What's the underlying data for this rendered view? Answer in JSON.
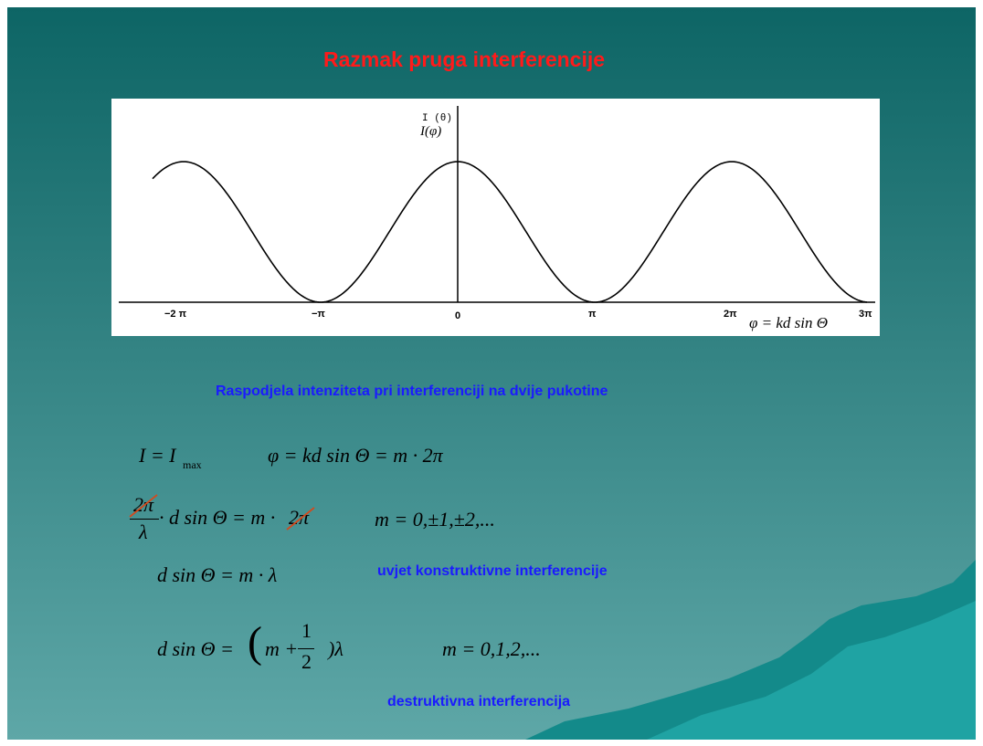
{
  "title": "Razmak pruga interferencije",
  "graph": {
    "y_label_top": "I (θ)",
    "y_label": "I(φ)",
    "x_label": "φ = kd sin Θ",
    "tick_labels": [
      "−2 π",
      "−π",
      "0",
      "π",
      "2π",
      "3π"
    ]
  },
  "caption": "Raspodjela intenziteta pri interferenciji na dvije pukotine",
  "equations": [
    {
      "lhs": "I = I",
      "sub": "max",
      "rhs": "φ = kd sin Θ = m · 2π"
    },
    {
      "numerator": "2π",
      "denominator": "λ",
      "body": "· d sin Θ = m ·",
      "crossed": "2π",
      "condition": "m = 0,±1,±2,..."
    },
    {
      "body": "d sin Θ = m · λ",
      "note": "uvjet konstruktivne interferencije"
    },
    {
      "lhs": "d sin Θ =",
      "open": "(",
      "body": "m +",
      "numerator": "1",
      "denominator": "2",
      "close": ")λ",
      "condition": "m = 0,1,2,..."
    }
  ],
  "destructive_note": "destruktivna interferencija"
}
